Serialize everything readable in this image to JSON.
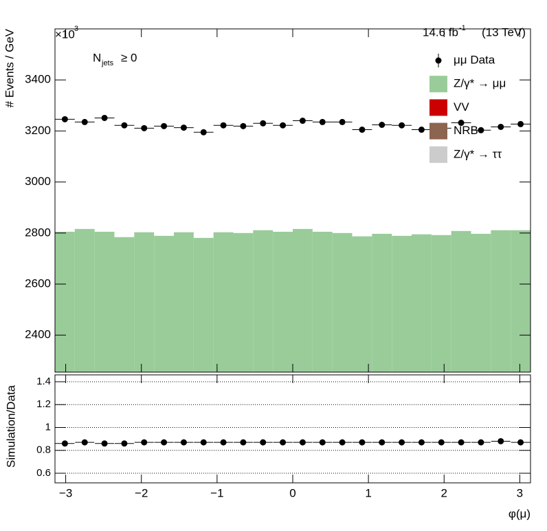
{
  "chart_data": [
    {
      "type": "histogram",
      "ylabel": "# Events / GeV",
      "y_multiplier": "×10",
      "y_multiplier_exponent": "3",
      "lumi": "14.6 fb",
      "lumi_exponent": "-1",
      "energy": "(13 TeV)",
      "selection": "N",
      "selection_subscript": "jets",
      "selection_cut": "≥ 0",
      "bins": [
        -3.1416,
        -2.8798,
        -2.618,
        -2.3562,
        -2.0944,
        -1.8326,
        -1.5708,
        -1.309,
        -1.0472,
        -0.7854,
        -0.5236,
        -0.2618,
        0,
        0.2618,
        0.5236,
        0.7854,
        1.0472,
        1.309,
        1.5708,
        1.8326,
        2.0944,
        2.3562,
        2.618,
        2.8798,
        3.1416
      ],
      "xlim": [
        -3.1416,
        3.1416
      ],
      "ylim": [
        2255,
        3600
      ],
      "yticks": [
        2400,
        2600,
        2800,
        3000,
        3200,
        3400
      ],
      "legend": "top-right",
      "series": [
        {
          "name": "μμ Data",
          "color": "#000000",
          "style": "points",
          "values": [
            3246,
            3235,
            3251,
            3222,
            3211,
            3219,
            3213,
            3195,
            3222,
            3219,
            3230,
            3222,
            3240,
            3235,
            3235,
            3205,
            3224,
            3222,
            3205,
            3211,
            3232,
            3203,
            3216,
            3227
          ]
        },
        {
          "name": "Z/γ* → μμ",
          "color": "#99cc99",
          "style": "stack",
          "values": [
            2805,
            2816,
            2805,
            2784,
            2803,
            2789,
            2803,
            2781,
            2803,
            2800,
            2811,
            2805,
            2816,
            2805,
            2800,
            2787,
            2797,
            2789,
            2795,
            2792,
            2808,
            2797,
            2811,
            2811
          ]
        },
        {
          "name": "VV",
          "color": "#cc0000",
          "style": "stack",
          "values": [
            0,
            0,
            0,
            0,
            0,
            0,
            0,
            0,
            0,
            0,
            0,
            0,
            0,
            0,
            0,
            0,
            0,
            0,
            0,
            0,
            0,
            0,
            0,
            0
          ]
        },
        {
          "name": "NRB",
          "color": "#8c6450",
          "style": "stack",
          "values": [
            0,
            0,
            0,
            0,
            0,
            0,
            0,
            0,
            0,
            0,
            0,
            0,
            0,
            0,
            0,
            0,
            0,
            0,
            0,
            0,
            0,
            0,
            0,
            0
          ]
        },
        {
          "name": "Z/γ* → ττ",
          "color": "#cccccc",
          "style": "stack",
          "values": [
            0,
            0,
            0,
            0,
            0,
            0,
            0,
            0,
            0,
            0,
            0,
            0,
            0,
            0,
            0,
            0,
            0,
            0,
            0,
            0,
            0,
            0,
            0,
            0
          ]
        }
      ]
    },
    {
      "type": "scatter",
      "ylabel": "Simulation/Data",
      "xlabel": "φ(μ)",
      "xlim": [
        -3.1416,
        3.1416
      ],
      "xticks": [
        {
          "value": -3,
          "label": "−3"
        },
        {
          "value": -2,
          "label": "−2"
        },
        {
          "value": -1,
          "label": "−1"
        },
        0,
        1,
        2,
        3
      ],
      "ylim": [
        0.516,
        1.46
      ],
      "yticks": [
        0.6,
        0.8,
        1,
        1.2,
        1.4
      ],
      "grid": true,
      "x": [
        -3.0107,
        -2.7489,
        -2.4871,
        -2.2253,
        -1.9635,
        -1.7017,
        -1.4399,
        -1.1781,
        -0.9163,
        -0.6545,
        -0.3927,
        -0.1309,
        0.1309,
        0.3927,
        0.6545,
        0.9163,
        1.1781,
        1.4399,
        1.7017,
        1.9635,
        2.2253,
        2.4871,
        2.7489,
        3.0107
      ],
      "color": "#000000",
      "values": [
        0.86,
        0.87,
        0.86,
        0.86,
        0.87,
        0.87,
        0.87,
        0.87,
        0.87,
        0.87,
        0.87,
        0.87,
        0.87,
        0.87,
        0.87,
        0.87,
        0.87,
        0.87,
        0.87,
        0.87,
        0.87,
        0.87,
        0.88,
        0.87
      ]
    }
  ]
}
